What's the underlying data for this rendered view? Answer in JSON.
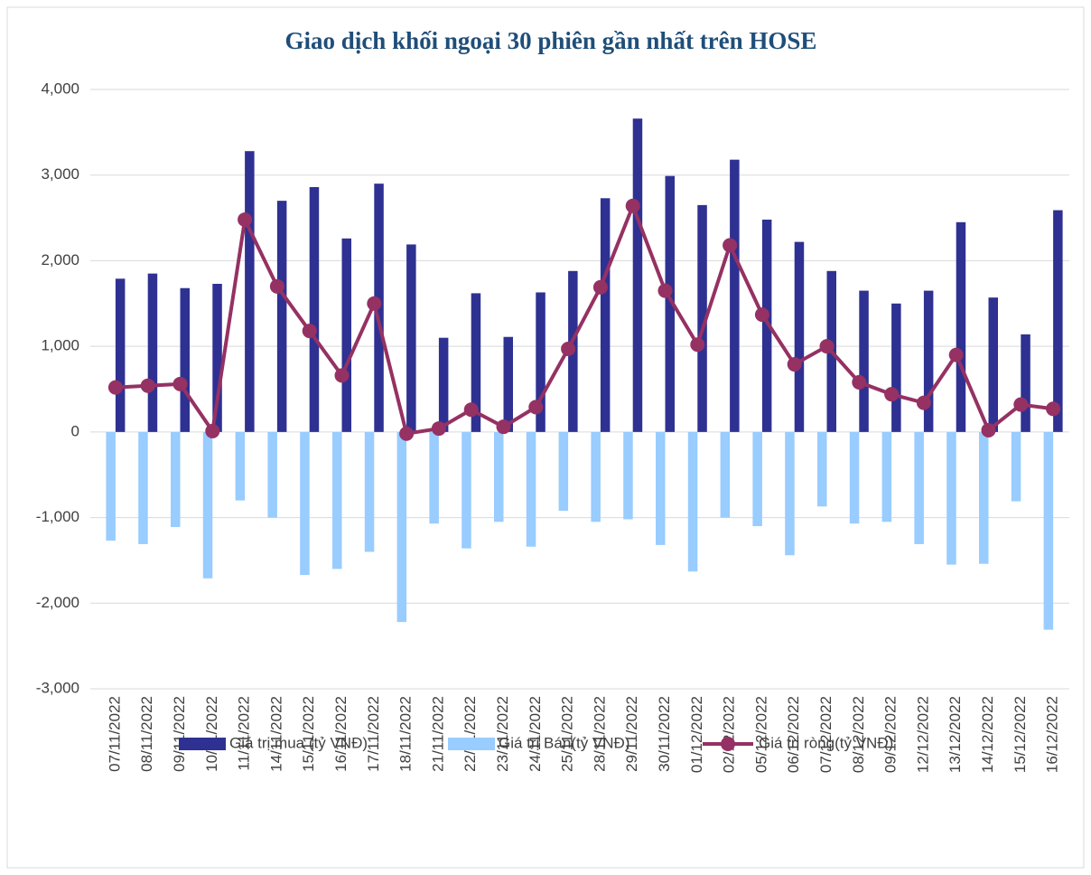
{
  "chart_data": {
    "type": "bar_line",
    "title": "Giao dịch khối ngoại 30 phiên gần nhất trên HOSE",
    "categories": [
      "07/11/2022",
      "08/11/2022",
      "09/11/2022",
      "10/11/2022",
      "11/11/2022",
      "14/11/2022",
      "15/11/2022",
      "16/11/2022",
      "17/11/2022",
      "18/11/2022",
      "21/11/2022",
      "22/11/2022",
      "23/11/2022",
      "24/11/2022",
      "25/11/2022",
      "28/11/2022",
      "29/11/2022",
      "30/11/2022",
      "01/12/2022",
      "02/12/2022",
      "05/12/2022",
      "06/12/2022",
      "07/12/2022",
      "08/12/2022",
      "09/12/2022",
      "12/12/2022",
      "13/12/2022",
      "14/12/2022",
      "15/12/2022",
      "16/12/2022"
    ],
    "series": [
      {
        "name": "Giá trị mua (tỷ VNĐ)",
        "type": "bar",
        "color": "#2e3192",
        "values": [
          1790,
          1850,
          1680,
          1730,
          3280,
          2700,
          2860,
          2260,
          2900,
          2190,
          1100,
          1620,
          1110,
          1630,
          1880,
          2730,
          3660,
          2990,
          2650,
          3180,
          2480,
          2220,
          1880,
          1650,
          1500,
          1650,
          2450,
          1570,
          1140,
          2590
        ]
      },
      {
        "name": "Giá trị Bán(tỷ VNĐ)",
        "type": "bar",
        "color": "#99ccff",
        "values": [
          -1270,
          -1310,
          -1110,
          -1710,
          -800,
          -1000,
          -1670,
          -1600,
          -1400,
          -2220,
          -1070,
          -1360,
          -1050,
          -1340,
          -920,
          -1050,
          -1020,
          -1320,
          -1630,
          -1000,
          -1100,
          -1440,
          -870,
          -1070,
          -1050,
          -1310,
          -1550,
          -1540,
          -810,
          -2310
        ]
      },
      {
        "name": "Giá trị ròng(tỷ VNĐ)",
        "type": "line",
        "color": "#953163",
        "values": [
          520,
          540,
          560,
          10,
          2480,
          1700,
          1180,
          660,
          1500,
          -20,
          40,
          260,
          60,
          290,
          970,
          1690,
          2640,
          1650,
          1020,
          2180,
          1370,
          790,
          1000,
          580,
          440,
          340,
          900,
          20,
          320,
          270
        ]
      }
    ],
    "ylim": [
      -3000,
      4000
    ],
    "yticks": [
      {
        "value": -3000,
        "label": "-3,000"
      },
      {
        "value": -2000,
        "label": "-2,000"
      },
      {
        "value": -1000,
        "label": "-1,000"
      },
      0,
      {
        "value": 1000,
        "label": "1,000"
      },
      {
        "value": 2000,
        "label": "2,000"
      },
      {
        "value": 3000,
        "label": "3,000"
      },
      {
        "value": 4000,
        "label": "4,000"
      }
    ],
    "grid": true,
    "legend": "bottom"
  }
}
